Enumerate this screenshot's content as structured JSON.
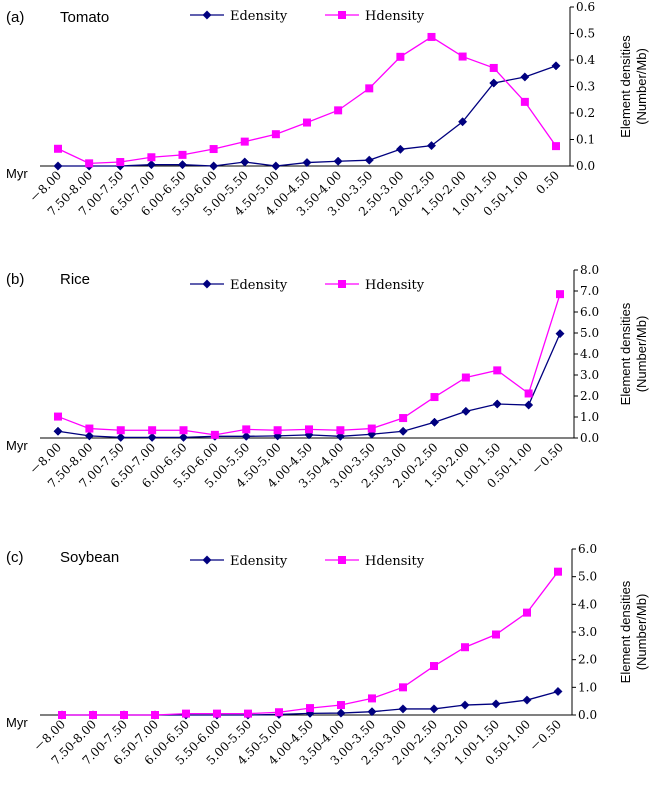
{
  "colors": {
    "edensity": "#00007f",
    "hdensity": "#ff00ff",
    "axis": "#000000"
  },
  "chart_data": [
    {
      "type": "line",
      "panel_label": "(a)",
      "title": "Tomato",
      "xlabel_prefix": "Myr",
      "ylabel": "Element densities",
      "ylabel_unit": "(Number/Mb)",
      "ylim": [
        0,
        0.6
      ],
      "yticks": [
        "0.0",
        "0.1",
        "0.2",
        "0.3",
        "0.4",
        "0.5",
        "0.6"
      ],
      "categories": [
        "－8.00",
        "7.50-8.00",
        "7.00-7.50",
        "6.50-7.00",
        "6.00-6.50",
        "5.50-6.00",
        "5.00-5.50",
        "4.50-5.00",
        "4.00-4.50",
        "3.50-4.00",
        "3.00-3.50",
        "2.50-3.00",
        "2.00-2.50",
        "1.50-2.00",
        "1.00-1.50",
        "0.50-1.00",
        "0.50"
      ],
      "series": [
        {
          "name": "Edensity",
          "marker": "diamond",
          "values": [
            0.0,
            0.0,
            0.0,
            0.005,
            0.005,
            0.0,
            0.015,
            0.0,
            0.013,
            0.018,
            0.022,
            0.063,
            0.077,
            0.167,
            0.313,
            0.336,
            0.378
          ]
        },
        {
          "name": "Hdensity",
          "marker": "square",
          "values": [
            0.065,
            0.01,
            0.015,
            0.033,
            0.042,
            0.064,
            0.092,
            0.12,
            0.164,
            0.21,
            0.293,
            0.412,
            0.487,
            0.413,
            0.37,
            0.242,
            0.075
          ]
        }
      ],
      "grid": false,
      "legend_position": "top"
    },
    {
      "type": "line",
      "panel_label": "(b)",
      "title": "Rice",
      "xlabel_prefix": "Myr",
      "ylabel": "Element densities",
      "ylabel_unit": "(Number/Mb)",
      "ylim": [
        0,
        8
      ],
      "yticks": [
        "0.0",
        "1.0",
        "2.0",
        "3.0",
        "4.0",
        "5.0",
        "6.0",
        "7.0",
        "8.0"
      ],
      "categories": [
        "－8.00",
        "7.50-8.00",
        "7.00-7.50",
        "6.50-7.00",
        "6.00-6.50",
        "5.50-6.00",
        "5.00-5.50",
        "4.50-5.00",
        "4.00-4.50",
        "3.50-4.00",
        "3.00-3.50",
        "2.50-3.00",
        "2.00-2.50",
        "1.50-2.00",
        "1.00-1.50",
        "0.50-1.00",
        "－0.50"
      ],
      "series": [
        {
          "name": "Edensity",
          "marker": "diamond",
          "values": [
            0.32,
            0.1,
            0.03,
            0.03,
            0.03,
            0.08,
            0.08,
            0.1,
            0.15,
            0.08,
            0.18,
            0.32,
            0.75,
            1.27,
            1.62,
            1.57,
            4.97
          ]
        },
        {
          "name": "Hdensity",
          "marker": "square",
          "values": [
            1.02,
            0.45,
            0.37,
            0.37,
            0.37,
            0.15,
            0.41,
            0.37,
            0.41,
            0.37,
            0.45,
            0.95,
            1.95,
            2.88,
            3.22,
            2.12,
            6.85
          ]
        }
      ],
      "grid": false,
      "legend_position": "top"
    },
    {
      "type": "line",
      "panel_label": "(c)",
      "title": "Soybean",
      "xlabel_prefix": "Myr",
      "ylabel": "Element densities",
      "ylabel_unit": "(Number/Mb)",
      "ylim": [
        0,
        6
      ],
      "yticks": [
        "0.0",
        "1.0",
        "2.0",
        "3.0",
        "4.0",
        "5.0",
        "6.0"
      ],
      "categories": [
        "－8.00",
        "7.50-8.00",
        "7.00-7.50",
        "6.50-7.00",
        "6.00-6.50",
        "5.50-6.00",
        "5.00-5.50",
        "4.50-5.00",
        "4.00-4.50",
        "3.50-4.00",
        "3.00-3.50",
        "2.50-3.00",
        "2.00-2.50",
        "1.50-2.00",
        "1.00-1.50",
        "0.50-1.00",
        "－0.50"
      ],
      "series": [
        {
          "name": "Edensity",
          "marker": "diamond",
          "values": [
            0.0,
            0.0,
            0.0,
            0.0,
            0.0,
            0.0,
            0.0,
            0.02,
            0.06,
            0.07,
            0.12,
            0.22,
            0.22,
            0.36,
            0.4,
            0.54,
            0.85
          ]
        },
        {
          "name": "Hdensity",
          "marker": "square",
          "values": [
            0.0,
            0.0,
            0.0,
            0.0,
            0.05,
            0.05,
            0.05,
            0.1,
            0.25,
            0.36,
            0.6,
            1.0,
            1.77,
            2.45,
            2.91,
            3.7,
            5.18
          ]
        }
      ],
      "grid": false,
      "legend_position": "top"
    }
  ]
}
